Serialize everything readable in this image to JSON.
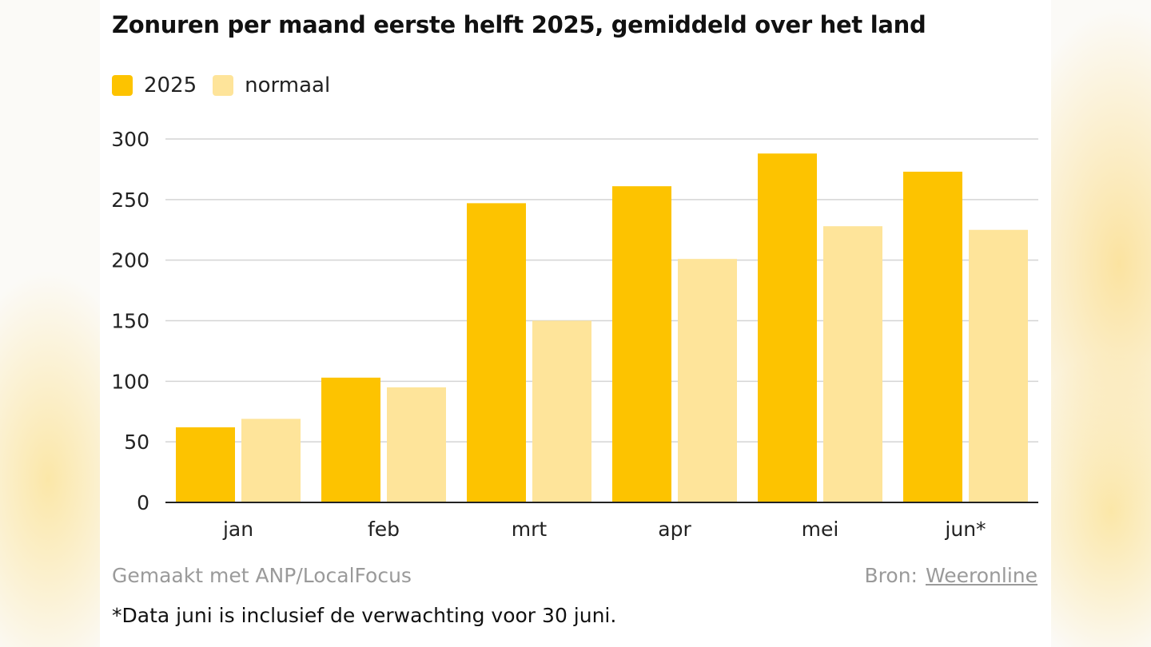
{
  "chart_data": {
    "type": "bar",
    "title": "Zonuren per maand eerste helft 2025, gemiddeld over het land",
    "categories": [
      "jan",
      "feb",
      "mrt",
      "apr",
      "mei",
      "jun*"
    ],
    "series": [
      {
        "name": "2025",
        "color": "#fdc300",
        "values": [
          62,
          103,
          247,
          261,
          288,
          273
        ]
      },
      {
        "name": "normaal",
        "color": "#fee49a",
        "values": [
          69,
          95,
          150,
          201,
          228,
          225
        ]
      }
    ],
    "ylim": [
      0,
      300
    ],
    "yticks": [
      0,
      50,
      100,
      150,
      200,
      250,
      300
    ],
    "grid": true,
    "legend": "top-left"
  },
  "footer": {
    "made_with": "Gemaakt met ANP/LocalFocus",
    "source_label": "Bron:",
    "source_name": "Weeronline",
    "note": "*Data juni is inclusief de verwachting voor 30 juni."
  }
}
